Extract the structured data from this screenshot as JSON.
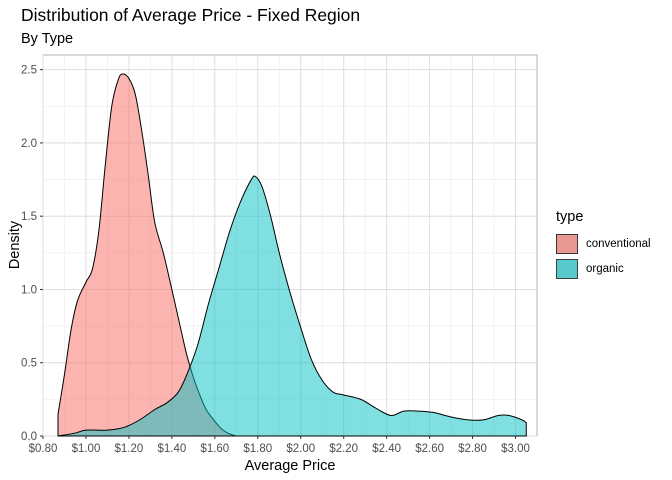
{
  "chart_data": {
    "type": "area",
    "title": "Distribution of Average Price - Fixed Region",
    "subtitle": "By Type",
    "xlabel": "Average Price",
    "ylabel": "Density",
    "xlim": [
      0.8,
      3.1
    ],
    "ylim": [
      0.0,
      2.6
    ],
    "x_ticks": [
      0.8,
      1.0,
      1.2,
      1.4,
      1.6,
      1.8,
      2.0,
      2.2,
      2.4,
      2.6,
      2.8,
      3.0
    ],
    "x_tick_labels": [
      "$0.80",
      "$1.00",
      "$1.20",
      "$1.40",
      "$1.60",
      "$1.80",
      "$2.00",
      "$2.20",
      "$2.40",
      "$2.60",
      "$2.80",
      "$3.00"
    ],
    "y_ticks": [
      0.0,
      0.5,
      1.0,
      1.5,
      2.0,
      2.5
    ],
    "y_tick_labels": [
      "0.0",
      "0.5",
      "1.0",
      "1.5",
      "2.0",
      "2.5"
    ],
    "grid": true,
    "legend": {
      "title": "type",
      "position": "right"
    },
    "series": [
      {
        "name": "conventional",
        "color": "#F8766D",
        "fill_opacity": 0.55,
        "points": [
          [
            0.87,
            0.15
          ],
          [
            0.9,
            0.42
          ],
          [
            0.93,
            0.72
          ],
          [
            0.96,
            0.92
          ],
          [
            1.0,
            1.05
          ],
          [
            1.03,
            1.14
          ],
          [
            1.06,
            1.4
          ],
          [
            1.09,
            1.85
          ],
          [
            1.12,
            2.25
          ],
          [
            1.15,
            2.43
          ],
          [
            1.17,
            2.47
          ],
          [
            1.2,
            2.44
          ],
          [
            1.23,
            2.33
          ],
          [
            1.26,
            2.08
          ],
          [
            1.29,
            1.78
          ],
          [
            1.32,
            1.46
          ],
          [
            1.36,
            1.25
          ],
          [
            1.4,
            1.0
          ],
          [
            1.44,
            0.74
          ],
          [
            1.47,
            0.55
          ],
          [
            1.5,
            0.4
          ],
          [
            1.53,
            0.28
          ],
          [
            1.56,
            0.18
          ],
          [
            1.6,
            0.1
          ],
          [
            1.63,
            0.05
          ],
          [
            1.66,
            0.02
          ],
          [
            1.7,
            0.0
          ]
        ]
      },
      {
        "name": "organic",
        "color": "#00BFC4",
        "fill_opacity": 0.5,
        "points": [
          [
            0.87,
            0.0
          ],
          [
            0.95,
            0.02
          ],
          [
            1.0,
            0.04
          ],
          [
            1.1,
            0.04
          ],
          [
            1.18,
            0.06
          ],
          [
            1.25,
            0.11
          ],
          [
            1.32,
            0.18
          ],
          [
            1.38,
            0.23
          ],
          [
            1.43,
            0.3
          ],
          [
            1.47,
            0.42
          ],
          [
            1.52,
            0.62
          ],
          [
            1.57,
            0.9
          ],
          [
            1.62,
            1.15
          ],
          [
            1.67,
            1.4
          ],
          [
            1.72,
            1.6
          ],
          [
            1.77,
            1.75
          ],
          [
            1.79,
            1.77
          ],
          [
            1.82,
            1.7
          ],
          [
            1.86,
            1.5
          ],
          [
            1.9,
            1.25
          ],
          [
            1.95,
            0.98
          ],
          [
            2.0,
            0.74
          ],
          [
            2.05,
            0.52
          ],
          [
            2.1,
            0.38
          ],
          [
            2.15,
            0.3
          ],
          [
            2.2,
            0.28
          ],
          [
            2.28,
            0.25
          ],
          [
            2.35,
            0.19
          ],
          [
            2.42,
            0.14
          ],
          [
            2.48,
            0.17
          ],
          [
            2.55,
            0.17
          ],
          [
            2.62,
            0.16
          ],
          [
            2.7,
            0.13
          ],
          [
            2.78,
            0.11
          ],
          [
            2.85,
            0.11
          ],
          [
            2.92,
            0.14
          ],
          [
            2.97,
            0.14
          ],
          [
            3.03,
            0.11
          ],
          [
            3.05,
            0.09
          ]
        ]
      }
    ]
  }
}
